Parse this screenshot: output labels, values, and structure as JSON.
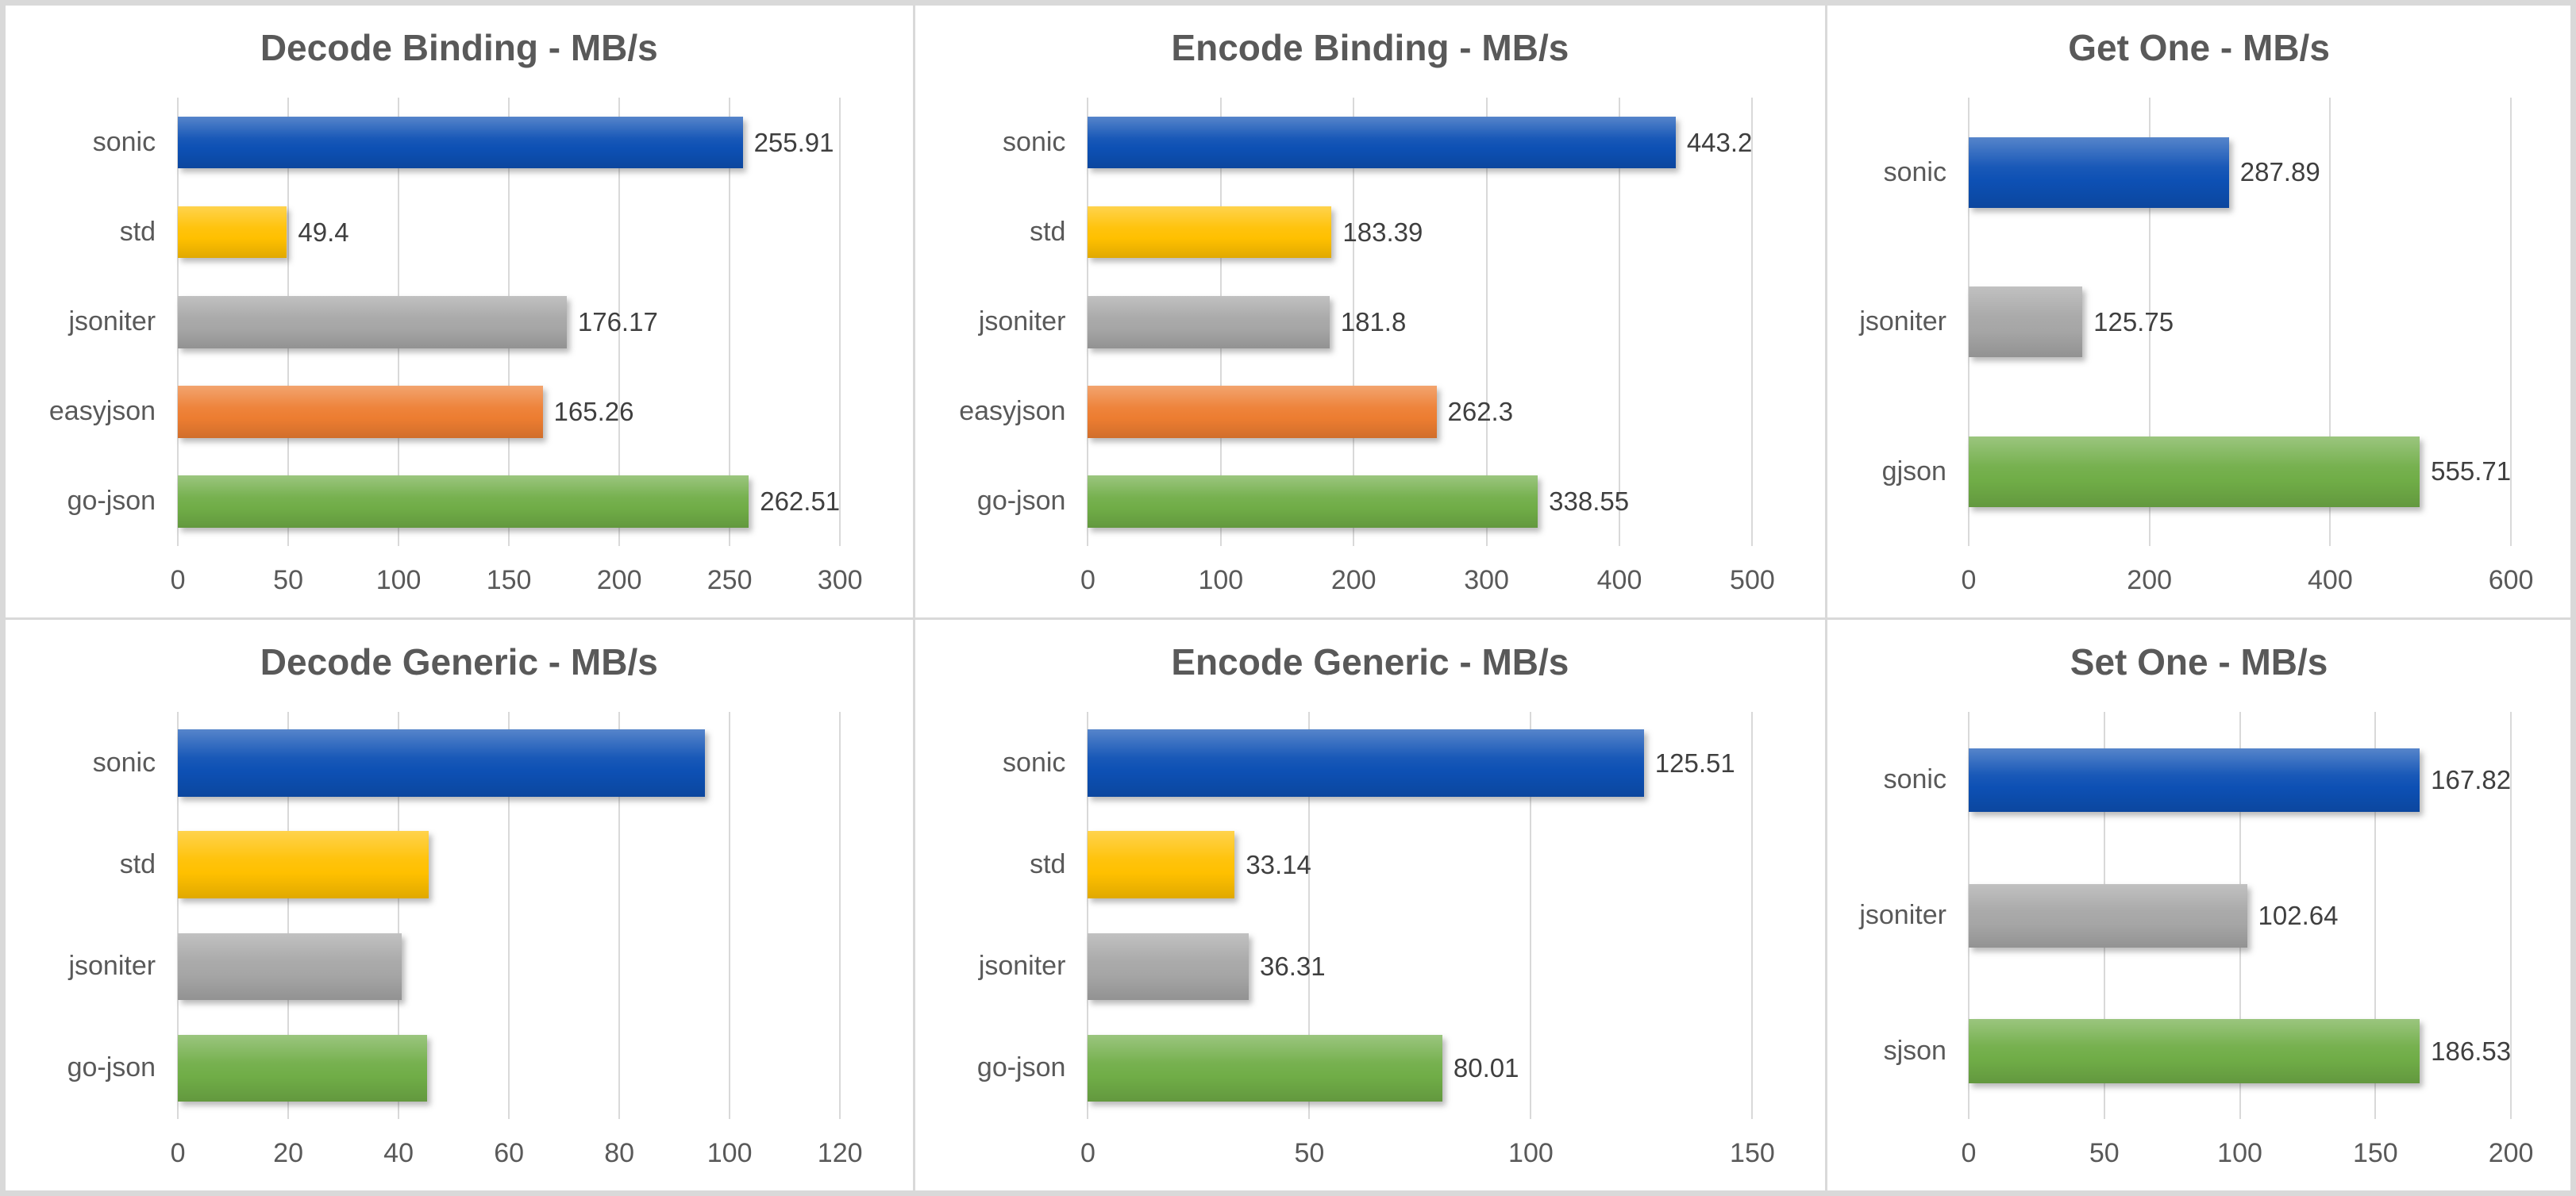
{
  "page": {
    "background": "#FFFFFF",
    "panel_border_color": "#D9D9D9",
    "gridline_color": "#D9D9D9",
    "title_color": "#595959",
    "axis_label_color": "#595959",
    "value_label_color": "#3F3F3F"
  },
  "palette": {
    "blue": "#0D50B4",
    "gold": "#FFC000",
    "gray": "#A6A6A6",
    "orange": "#ED7D31",
    "green": "#70AD47"
  },
  "chart_data": [
    {
      "type": "bar",
      "orientation": "horizontal",
      "title": "Decode Binding - MB/s",
      "xlabel": "",
      "ylabel": "",
      "xlim": [
        0,
        300
      ],
      "ticks": [
        0,
        50,
        100,
        150,
        200,
        250,
        300
      ],
      "grid": true,
      "legend": "none",
      "value_labels_shown": true,
      "bars": [
        {
          "category": "sonic",
          "value": 255.91,
          "label": "255.91",
          "color": "blue"
        },
        {
          "category": "std",
          "value": 49.4,
          "label": "49.4",
          "color": "gold"
        },
        {
          "category": "jsoniter",
          "value": 176.17,
          "label": "176.17",
          "color": "gray"
        },
        {
          "category": "easyjson",
          "value": 165.26,
          "label": "165.26",
          "color": "orange"
        },
        {
          "category": "go-json",
          "value": 262.51,
          "label": "262.51",
          "color": "green"
        }
      ]
    },
    {
      "type": "bar",
      "orientation": "horizontal",
      "title": "Encode Binding - MB/s",
      "xlabel": "",
      "ylabel": "",
      "xlim": [
        0,
        500
      ],
      "ticks": [
        0,
        100,
        200,
        300,
        400,
        500
      ],
      "grid": true,
      "legend": "none",
      "value_labels_shown": true,
      "bars": [
        {
          "category": "sonic",
          "value": 443.2,
          "label": "443.2",
          "color": "blue"
        },
        {
          "category": "std",
          "value": 183.39,
          "label": "183.39",
          "color": "gold"
        },
        {
          "category": "jsoniter",
          "value": 181.8,
          "label": "181.8",
          "color": "gray"
        },
        {
          "category": "easyjson",
          "value": 262.3,
          "label": "262.3",
          "color": "orange"
        },
        {
          "category": "go-json",
          "value": 338.55,
          "label": "338.55",
          "color": "green"
        }
      ]
    },
    {
      "type": "bar",
      "orientation": "horizontal",
      "title": "Get One - MB/s",
      "xlabel": "",
      "ylabel": "",
      "xlim": [
        0,
        600
      ],
      "ticks": [
        0,
        200,
        400,
        600
      ],
      "grid": true,
      "legend": "none",
      "value_labels_shown": true,
      "bars": [
        {
          "category": "sonic",
          "value": 287.89,
          "label": "287.89",
          "color": "blue"
        },
        {
          "category": "jsoniter",
          "value": 125.75,
          "label": "125.75",
          "color": "gray"
        },
        {
          "category": "gjson",
          "value": 555.71,
          "label": "555.71",
          "color": "green"
        }
      ]
    },
    {
      "type": "bar",
      "orientation": "horizontal",
      "title": "Decode Generic - MB/s",
      "xlabel": "",
      "ylabel": "",
      "xlim": [
        0,
        120
      ],
      "ticks": [
        0,
        20,
        40,
        60,
        80,
        100,
        120
      ],
      "grid": true,
      "legend": "none",
      "value_labels_shown": false,
      "values_estimated_from_gridlines": true,
      "bars": [
        {
          "category": "sonic",
          "value": 95.5,
          "label": "",
          "color": "blue"
        },
        {
          "category": "std",
          "value": 45.4,
          "label": "",
          "color": "gold"
        },
        {
          "category": "jsoniter",
          "value": 40.5,
          "label": "",
          "color": "gray"
        },
        {
          "category": "go-json",
          "value": 45.1,
          "label": "",
          "color": "green"
        }
      ]
    },
    {
      "type": "bar",
      "orientation": "horizontal",
      "title": "Encode Generic - MB/s",
      "xlabel": "",
      "ylabel": "",
      "xlim": [
        0,
        150
      ],
      "ticks": [
        0,
        50,
        100,
        150
      ],
      "grid": true,
      "legend": "none",
      "value_labels_shown": true,
      "bars": [
        {
          "category": "sonic",
          "value": 125.51,
          "label": "125.51",
          "color": "blue"
        },
        {
          "category": "std",
          "value": 33.14,
          "label": "33.14",
          "color": "gold"
        },
        {
          "category": "jsoniter",
          "value": 36.31,
          "label": "36.31",
          "color": "gray"
        },
        {
          "category": "go-json",
          "value": 80.01,
          "label": "80.01",
          "color": "green"
        }
      ]
    },
    {
      "type": "bar",
      "orientation": "horizontal",
      "title": "Set One - MB/s",
      "xlabel": "",
      "ylabel": "",
      "xlim": [
        0,
        200
      ],
      "ticks": [
        0,
        50,
        100,
        150,
        200
      ],
      "grid": true,
      "legend": "none",
      "value_labels_shown": true,
      "bars": [
        {
          "category": "sonic",
          "value": 167.82,
          "label": "167.82",
          "color": "blue"
        },
        {
          "category": "jsoniter",
          "value": 102.64,
          "label": "102.64",
          "color": "gray"
        },
        {
          "category": "sjson",
          "value": 186.53,
          "label": "186.53",
          "color": "green"
        }
      ]
    }
  ]
}
